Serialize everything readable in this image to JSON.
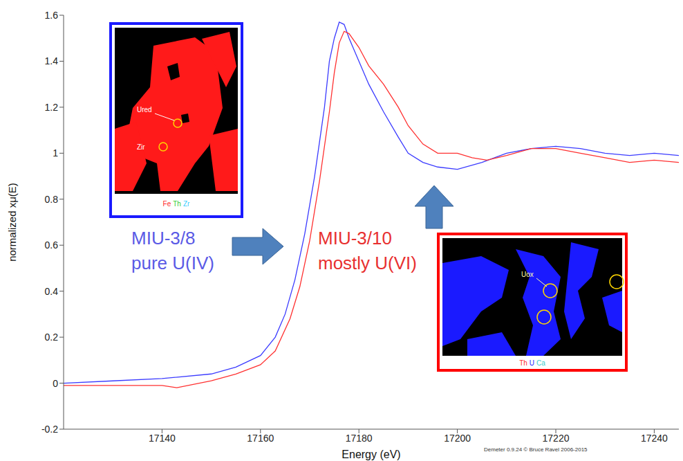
{
  "chart_data": {
    "type": "line",
    "x_label": "Energy    (eV)",
    "y_label": "normalized xμ(E)",
    "xlim": [
      17120,
      17245
    ],
    "xticks": [
      17140,
      17160,
      17180,
      17200,
      17220,
      17240
    ],
    "ylim": [
      -0.2,
      1.6
    ],
    "yticks": [
      -0.2,
      0,
      0.2,
      0.4,
      0.6,
      0.8,
      1,
      1.2,
      1.4,
      1.6
    ],
    "grid": false,
    "series": [
      {
        "name": "MIU-3/8",
        "description": "pure U(IV)",
        "color": "#3b3bff",
        "x": [
          17120,
          17130,
          17140,
          17150,
          17155,
          17160,
          17163,
          17165,
          17167,
          17169,
          17171,
          17173,
          17174,
          17175,
          17176,
          17177,
          17178,
          17180,
          17182,
          17185,
          17188,
          17190,
          17193,
          17196,
          17200,
          17205,
          17210,
          17215,
          17220,
          17225,
          17230,
          17235,
          17240,
          17245
        ],
        "values": [
          0.0,
          0.01,
          0.02,
          0.04,
          0.07,
          0.12,
          0.2,
          0.3,
          0.45,
          0.65,
          0.9,
          1.2,
          1.4,
          1.5,
          1.57,
          1.56,
          1.5,
          1.4,
          1.3,
          1.18,
          1.07,
          1.0,
          0.96,
          0.94,
          0.93,
          0.96,
          1.0,
          1.02,
          1.03,
          1.02,
          1.0,
          0.99,
          1.0,
          0.99
        ]
      },
      {
        "name": "MIU-3/10",
        "description": "mostly U(VI)",
        "color": "#ff3030",
        "x": [
          17120,
          17130,
          17140,
          17143,
          17150,
          17155,
          17160,
          17163,
          17166,
          17168,
          17170,
          17172,
          17174,
          17175,
          17176,
          17177,
          17178,
          17180,
          17182,
          17185,
          17188,
          17190,
          17193,
          17196,
          17200,
          17203,
          17206,
          17210,
          17215,
          17220,
          17225,
          17230,
          17235,
          17240,
          17245
        ],
        "values": [
          -0.01,
          -0.01,
          -0.01,
          -0.02,
          0.01,
          0.04,
          0.08,
          0.14,
          0.28,
          0.42,
          0.62,
          0.88,
          1.18,
          1.35,
          1.48,
          1.53,
          1.52,
          1.46,
          1.38,
          1.3,
          1.2,
          1.12,
          1.04,
          1.0,
          1.0,
          0.98,
          0.97,
          0.99,
          1.02,
          1.02,
          1.0,
          0.98,
          0.96,
          0.97,
          0.96
        ]
      }
    ],
    "insets": [
      {
        "color": "#1a1aff",
        "labels": [
          "Ured",
          "Zir"
        ],
        "elements": [
          {
            "text": "Fe",
            "color": "#ff2a2a"
          },
          {
            "text": "Th",
            "color": "#33cc33"
          },
          {
            "text": "Zr",
            "color": "#33ccff"
          }
        ]
      },
      {
        "color": "#ff0000",
        "labels": [
          "Uox"
        ],
        "elements": [
          {
            "text": "Th",
            "color": "#ff2a2a"
          },
          {
            "text": "U",
            "color": "#1a1aff"
          },
          {
            "text": "Ca",
            "color": "#33cccc"
          }
        ]
      }
    ],
    "credit": "Demeter 0.9.24 © Bruce Ravel 2006-2015"
  }
}
